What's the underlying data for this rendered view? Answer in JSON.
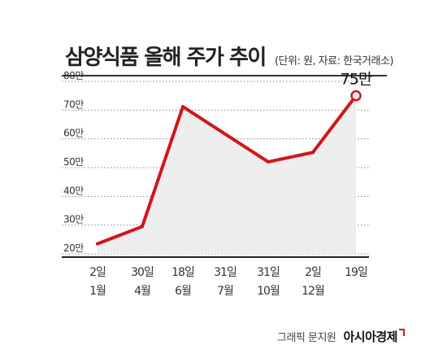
{
  "header": {
    "title": "삼양식품 올해 주가 추이",
    "unit_note": "(단위: 원, 자료: 한국거래소)"
  },
  "footer": {
    "credit": "그래픽 문지원",
    "brand": "아시아경제"
  },
  "colors": {
    "line": "#d0161b",
    "area": "#eeeeee",
    "grid": "#888888"
  },
  "chart_data": {
    "type": "area",
    "title": "삼양식품 올해 주가 추이",
    "ylim": [
      200000,
      800000
    ],
    "y_ticks": [
      {
        "value": 800000,
        "label": "80만"
      },
      {
        "value": 700000,
        "label": "70만"
      },
      {
        "value": 600000,
        "label": "60만"
      },
      {
        "value": 500000,
        "label": "50만"
      },
      {
        "value": 400000,
        "label": "40만"
      },
      {
        "value": 300000,
        "label": "30만"
      },
      {
        "value": 200000,
        "label": "20만"
      }
    ],
    "x_labels": [
      {
        "day": "2일",
        "month": "1월"
      },
      {
        "day": "30일",
        "month": "4월"
      },
      {
        "day": "18일",
        "month": "6월"
      },
      {
        "day": "31일",
        "month": "7월"
      },
      {
        "day": "31일",
        "month": "10월"
      },
      {
        "day": "2일",
        "month": "12월"
      },
      {
        "day": "19일",
        "month": ""
      }
    ],
    "points": [
      {
        "date": "1월 2일",
        "value": 235000
      },
      {
        "date": "4월 30일",
        "value": 295000
      },
      {
        "date": "6월 18일",
        "value": 712000
      },
      {
        "date": "10월 31일",
        "value": 520000
      },
      {
        "date": "12월 2일",
        "value": 553000
      },
      {
        "date": "12월 19일",
        "value": 750000
      }
    ],
    "annotation": {
      "label": "75만",
      "value": 750000
    }
  }
}
